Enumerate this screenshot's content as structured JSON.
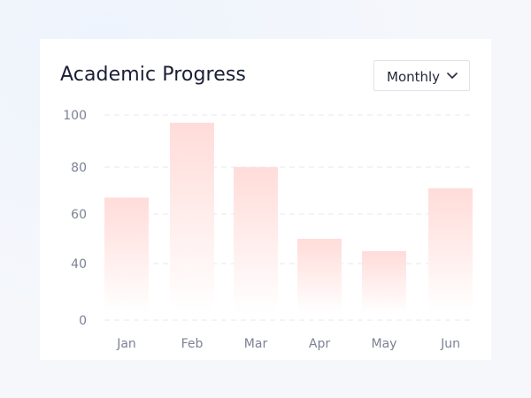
{
  "card": {
    "title": "Academic Progress",
    "period_select": {
      "selected": "Monthly",
      "icon": "chevron-down-icon"
    }
  },
  "colors": {
    "bar_top": "#ffdcd9",
    "bar_bottom": "#ffffff",
    "grid": "#e6e9ee",
    "tick": "#7c8294",
    "title": "#1a1f36"
  },
  "chart_data": {
    "type": "bar",
    "title": "",
    "xlabel": "",
    "ylabel": "",
    "categories": [
      "Jan",
      "Feb",
      "Mar",
      "Apr",
      "May",
      "Jun"
    ],
    "values": [
      67,
      97,
      80,
      50,
      45,
      71
    ],
    "y_ticks": [
      {
        "value": 100,
        "label": "100"
      },
      {
        "value": 80,
        "label": "80"
      },
      {
        "value": 60,
        "label": "60"
      },
      {
        "value": 40,
        "label": "40"
      },
      {
        "value": 0,
        "label": "0"
      }
    ],
    "grid": true,
    "grid_style": "dashed"
  }
}
